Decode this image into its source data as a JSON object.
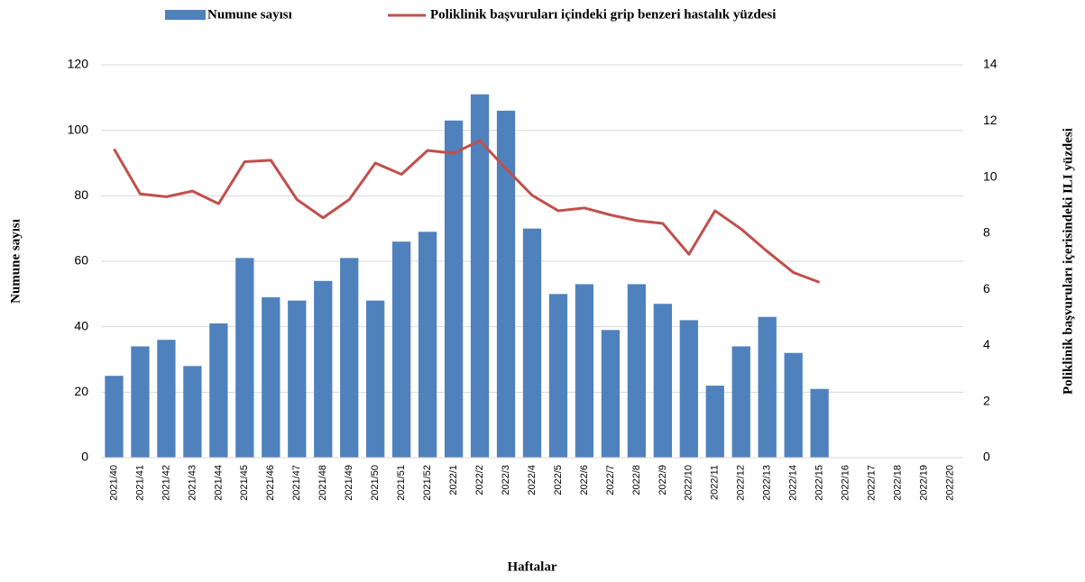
{
  "chart_data": {
    "type": "bar",
    "categories": [
      "2021/40",
      "2021/41",
      "2021/42",
      "2021/43",
      "2021/44",
      "2021/45",
      "2021/46",
      "2021/47",
      "2021/48",
      "2021/49",
      "2021/50",
      "2021/51",
      "2021/52",
      "2022/1",
      "2022/2",
      "2022/3",
      "2022/4",
      "2022/5",
      "2022/6",
      "2022/7",
      "2022/8",
      "2022/9",
      "2022/10",
      "2022/11",
      "2022/12",
      "2022/13",
      "2022/14",
      "2022/15",
      "2022/16",
      "2022/17",
      "2022/18",
      "2022/19",
      "2022/20"
    ],
    "series": [
      {
        "name": "Numune sayısı",
        "type": "bar",
        "color": "#4f81bd",
        "values": [
          25,
          34,
          36,
          28,
          41,
          61,
          49,
          48,
          54,
          61,
          48,
          66,
          69,
          103,
          111,
          106,
          70,
          50,
          53,
          39,
          53,
          47,
          42,
          22,
          34,
          43,
          32,
          21,
          null,
          null,
          null,
          null,
          null
        ]
      },
      {
        "name": "Poliklinik başvuruları içindeki grip benzeri hastalık yüzdesi",
        "type": "line",
        "axis": "y2",
        "color": "#c0504d",
        "values": [
          11.0,
          9.4,
          9.3,
          9.5,
          9.05,
          10.55,
          10.6,
          9.2,
          8.55,
          9.2,
          10.5,
          10.1,
          10.95,
          10.85,
          11.3,
          10.3,
          9.35,
          8.8,
          8.9,
          8.65,
          8.45,
          8.35,
          7.25,
          8.8,
          8.15,
          7.35,
          6.6,
          6.25,
          null,
          null,
          null,
          null,
          null
        ]
      }
    ],
    "xlabel": "Haftalar",
    "ylabel": "Numune sayısı",
    "y2label": "Poliklinik başvuruları içerisindeki ILI yüzdesi",
    "ylim": [
      0,
      120
    ],
    "yticks": [
      0,
      20,
      40,
      60,
      80,
      100,
      120
    ],
    "y2lim": [
      0,
      14
    ],
    "y2ticks": [
      0,
      2,
      4,
      6,
      8,
      10,
      12,
      14
    ],
    "grid": true
  }
}
